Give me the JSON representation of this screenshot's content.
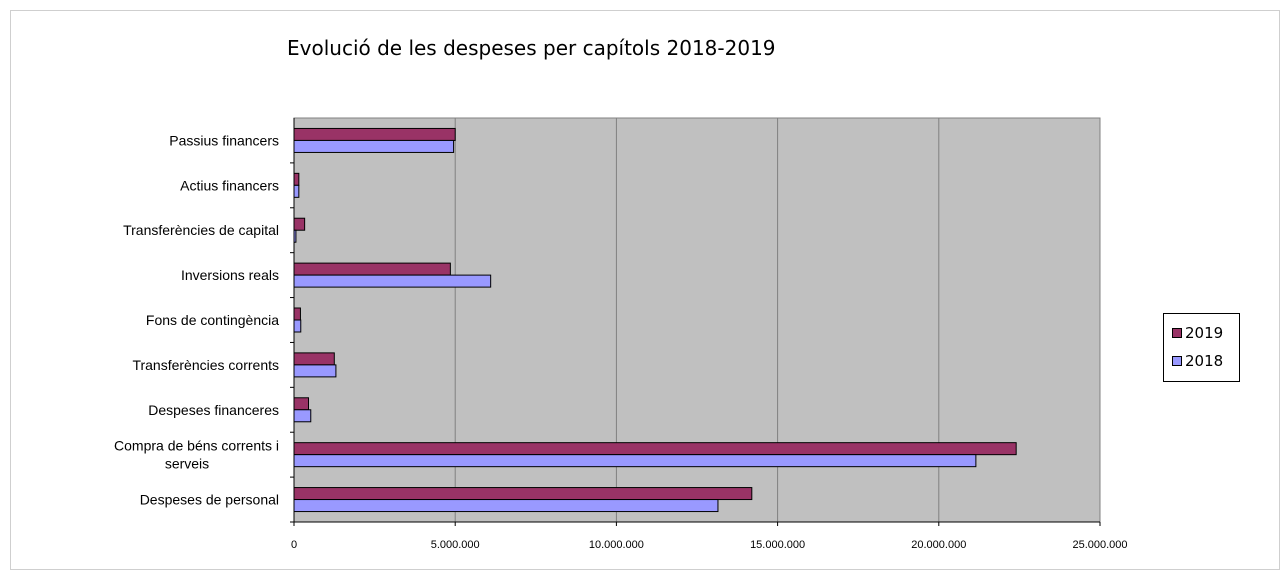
{
  "chart_data": {
    "type": "bar",
    "orientation": "horizontal",
    "title": "Evolució de les despeses per capítols 2018-2019",
    "xlabel": "",
    "ylabel": "",
    "xlim": [
      0,
      25000000
    ],
    "x_ticks": [
      0,
      5000000,
      10000000,
      15000000,
      20000000,
      25000000
    ],
    "x_tick_labels": [
      "0",
      "5.000.000",
      "10.000.000",
      "15.000.000",
      "20.000.000",
      "25.000.000"
    ],
    "grid": "vertical",
    "legend_position": "right",
    "categories": [
      [
        "Despeses de personal"
      ],
      [
        "Compra de béns corrents i",
        "serveis"
      ],
      [
        "Despeses financeres"
      ],
      [
        "Transferències corrents"
      ],
      [
        "Fons de contingència"
      ],
      [
        "Inversions reals"
      ],
      [
        "Transferències de capital"
      ],
      [
        "Actius financers"
      ],
      [
        "Passius financers"
      ]
    ],
    "series": [
      {
        "name": "2019",
        "color": "#993366",
        "values": [
          14200000,
          22400000,
          450000,
          1250000,
          200000,
          4850000,
          330000,
          150000,
          5000000
        ]
      },
      {
        "name": "2018",
        "color": "#9999ff",
        "values": [
          13150000,
          21150000,
          520000,
          1300000,
          210000,
          6100000,
          60000,
          150000,
          4950000
        ]
      }
    ],
    "plot_background": "#c0c0c0"
  }
}
